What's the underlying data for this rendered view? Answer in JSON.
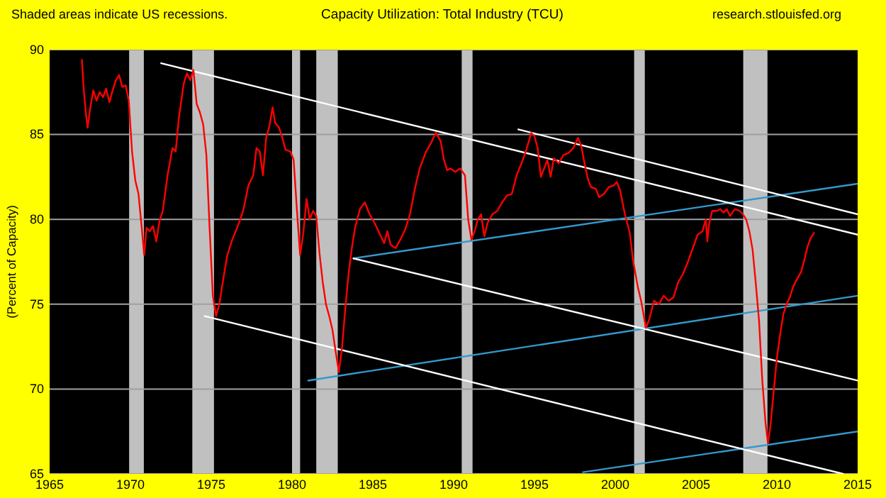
{
  "chart_data": {
    "type": "line",
    "title": "Capacity Utilization: Total Industry (TCU)",
    "ylabel": "(Percent of Capacity)",
    "annotations": [
      "Shaded areas indicate US recessions.",
      "research.stlouisfed.org"
    ],
    "xlim": [
      1965,
      2015
    ],
    "xticks": [
      1965,
      1970,
      1975,
      1980,
      1985,
      1990,
      1995,
      2000,
      2005,
      2010,
      2015
    ],
    "ylim": [
      65,
      90
    ],
    "yticks": [
      65,
      70,
      75,
      80,
      85,
      90
    ],
    "grid": "y",
    "bands": [
      {
        "axis": "x",
        "from": 1969.92,
        "to": 1970.83,
        "color": "#c0c0c0"
      },
      {
        "axis": "x",
        "from": 1973.83,
        "to": 1975.17,
        "color": "#c0c0c0"
      },
      {
        "axis": "x",
        "from": 1980.0,
        "to": 1980.5,
        "color": "#c0c0c0"
      },
      {
        "axis": "x",
        "from": 1981.5,
        "to": 1982.83,
        "color": "#c0c0c0"
      },
      {
        "axis": "x",
        "from": 1990.5,
        "to": 1991.17,
        "color": "#c0c0c0"
      },
      {
        "axis": "x",
        "from": 2001.17,
        "to": 2001.83,
        "color": "#c0c0c0"
      },
      {
        "axis": "x",
        "from": 2007.92,
        "to": 2009.42,
        "color": "#c0c0c0"
      }
    ],
    "series": [
      {
        "type": "line",
        "color": "#ff0000",
        "x": [
          1967.0,
          1967.1,
          1967.25,
          1967.35,
          1967.5,
          1967.7,
          1967.9,
          1968.1,
          1968.3,
          1968.5,
          1968.7,
          1968.9,
          1969.1,
          1969.3,
          1969.5,
          1969.7,
          1969.9,
          1970.1,
          1970.3,
          1970.5,
          1970.7,
          1970.85,
          1971.0,
          1971.2,
          1971.4,
          1971.6,
          1971.8,
          1972.0,
          1972.3,
          1972.6,
          1972.8,
          1973.0,
          1973.3,
          1973.5,
          1973.7,
          1973.9,
          1974.1,
          1974.3,
          1974.5,
          1974.7,
          1974.9,
          1975.1,
          1975.3,
          1975.5,
          1975.8,
          1976.0,
          1976.3,
          1976.6,
          1976.8,
          1977.0,
          1977.3,
          1977.6,
          1977.8,
          1978.0,
          1978.2,
          1978.4,
          1978.6,
          1978.8,
          1978.95,
          1979.2,
          1979.4,
          1979.6,
          1979.9,
          1980.1,
          1980.3,
          1980.5,
          1980.7,
          1980.9,
          1981.1,
          1981.3,
          1981.5,
          1981.7,
          1981.9,
          1982.1,
          1982.3,
          1982.5,
          1982.7,
          1982.9,
          1983.1,
          1983.3,
          1983.5,
          1983.7,
          1983.9,
          1984.2,
          1984.5,
          1984.8,
          1985.1,
          1985.4,
          1985.7,
          1985.9,
          1986.1,
          1986.4,
          1986.7,
          1987.0,
          1987.3,
          1987.6,
          1987.9,
          1988.3,
          1988.6,
          1988.9,
          1989.2,
          1989.4,
          1989.6,
          1989.8,
          1990.1,
          1990.4,
          1990.7,
          1990.9,
          1991.1,
          1991.3,
          1991.5,
          1991.7,
          1991.9,
          1992.1,
          1992.4,
          1992.7,
          1993.0,
          1993.3,
          1993.6,
          1993.9,
          1994.2,
          1994.5,
          1994.8,
          1995.0,
          1995.2,
          1995.4,
          1995.6,
          1995.8,
          1996.0,
          1996.2,
          1996.5,
          1996.8,
          1997.1,
          1997.4,
          1997.7,
          1997.9,
          1998.1,
          1998.3,
          1998.5,
          1998.8,
          1999.0,
          1999.3,
          1999.6,
          1999.9,
          2000.1,
          2000.3,
          2000.6,
          2000.9,
          2001.1,
          2001.4,
          2001.6,
          2001.9,
          2002.1,
          2002.4,
          2002.7,
          2003.0,
          2003.3,
          2003.6,
          2003.9,
          2004.2,
          2004.5,
          2004.8,
          2005.1,
          2005.4,
          2005.6,
          2005.7,
          2005.8,
          2006.0,
          2006.3,
          2006.5,
          2006.7,
          2006.9,
          2007.1,
          2007.4,
          2007.7,
          2007.9,
          2008.1,
          2008.3,
          2008.5,
          2008.7,
          2008.9,
          2009.1,
          2009.3,
          2009.45,
          2009.6,
          2009.8,
          2010.0,
          2010.2,
          2010.4,
          2010.6,
          2010.8,
          2011.0,
          2011.2,
          2011.5,
          2011.7,
          2011.9,
          2012.1,
          2012.3
        ],
        "values": [
          89.4,
          87.8,
          86.2,
          85.4,
          86.5,
          87.6,
          87.0,
          87.5,
          87.2,
          87.7,
          86.9,
          87.6,
          88.2,
          88.5,
          87.8,
          87.9,
          87.0,
          84.0,
          82.3,
          81.5,
          79.5,
          77.9,
          79.5,
          79.3,
          79.6,
          78.7,
          79.9,
          80.5,
          82.6,
          84.2,
          84.0,
          86.0,
          88.0,
          88.6,
          88.2,
          88.8,
          86.8,
          86.3,
          85.6,
          83.8,
          79.5,
          75.5,
          74.3,
          75.0,
          76.8,
          77.9,
          78.8,
          79.5,
          80.0,
          80.6,
          82.0,
          82.6,
          84.2,
          84.0,
          82.6,
          84.8,
          85.5,
          86.6,
          85.7,
          85.4,
          84.8,
          84.1,
          84.0,
          83.5,
          80.6,
          77.9,
          79.2,
          81.2,
          80.0,
          80.5,
          80.2,
          78.0,
          76.3,
          75.0,
          74.3,
          73.5,
          72.2,
          71.0,
          72.5,
          74.8,
          76.8,
          78.3,
          79.5,
          80.6,
          81.0,
          80.3,
          79.8,
          79.2,
          78.6,
          79.3,
          78.5,
          78.3,
          78.8,
          79.4,
          80.3,
          81.8,
          83.0,
          84.0,
          84.5,
          85.1,
          84.6,
          83.5,
          82.9,
          83.0,
          82.8,
          83.0,
          82.6,
          80.0,
          78.8,
          79.3,
          80.0,
          80.3,
          79.0,
          79.8,
          80.3,
          80.5,
          81.0,
          81.4,
          81.5,
          82.6,
          83.3,
          84.1,
          85.1,
          84.9,
          84.2,
          82.5,
          83.0,
          83.5,
          82.5,
          83.6,
          83.3,
          83.8,
          83.9,
          84.2,
          84.8,
          84.3,
          83.3,
          82.4,
          81.9,
          81.8,
          81.3,
          81.5,
          81.9,
          82.0,
          82.2,
          81.7,
          80.3,
          79.2,
          77.6,
          76.0,
          75.2,
          73.6,
          74.1,
          75.2,
          75.0,
          75.5,
          75.2,
          75.4,
          76.3,
          76.8,
          77.5,
          78.3,
          79.1,
          79.3,
          80.0,
          78.7,
          79.7,
          80.5,
          80.5,
          80.6,
          80.4,
          80.6,
          80.2,
          80.6,
          80.5,
          80.3,
          80.0,
          79.3,
          78.2,
          76.2,
          74.0,
          70.5,
          68.0,
          66.8,
          67.8,
          69.8,
          71.8,
          73.2,
          74.4,
          75.0,
          75.4,
          76.0,
          76.4,
          76.9,
          77.6,
          78.4,
          78.9,
          79.2
        ]
      },
      {
        "type": "line",
        "color": "#ffffff",
        "x": [
          1971.9,
          2015
        ],
        "values": [
          89.2,
          79.1
        ]
      },
      {
        "type": "line",
        "color": "#ffffff",
        "x": [
          1994,
          2015
        ],
        "values": [
          85.3,
          80.3
        ]
      },
      {
        "type": "line",
        "color": "#ffffff",
        "x": [
          1983.8,
          2015
        ],
        "values": [
          77.7,
          70.5
        ]
      },
      {
        "type": "line",
        "color": "#ffffff",
        "x": [
          1974.6,
          2014.1
        ],
        "values": [
          74.3,
          65
        ]
      },
      {
        "type": "line",
        "color": "#3399cc",
        "x": [
          1983.8,
          2015
        ],
        "values": [
          77.7,
          82.1
        ]
      },
      {
        "type": "line",
        "color": "#3399cc",
        "x": [
          1981,
          2015
        ],
        "values": [
          70.5,
          75.5
        ]
      },
      {
        "type": "line",
        "color": "#3399cc",
        "x": [
          1998,
          2015
        ],
        "values": [
          65.1,
          67.5
        ]
      }
    ]
  }
}
